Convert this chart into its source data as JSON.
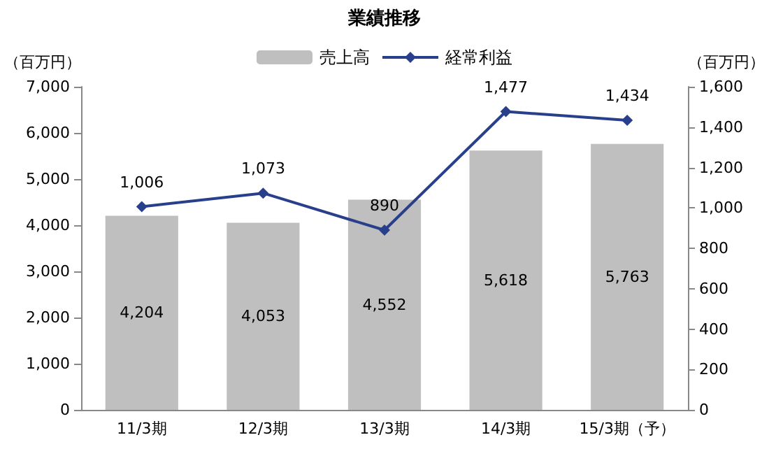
{
  "chart_data": {
    "type": "bar",
    "title": "業績推移",
    "ylabel": "（百万円）",
    "y2label": "（百万円）",
    "categories": [
      "11/3期",
      "12/3期",
      "13/3期",
      "14/3期",
      "15/3期（予）"
    ],
    "series": [
      {
        "name": "売上高",
        "color": "#bfbfbf",
        "values": [
          4204,
          4053,
          4552,
          5618,
          5763
        ],
        "value_labels": [
          "4,204",
          "4,053",
          "4,552",
          "5,618",
          "5,763"
        ]
      },
      {
        "name": "経常利益",
        "type": "line",
        "axis": "y2",
        "color": "#283f8c",
        "marker": "diamond",
        "values": [
          1006,
          1073,
          890,
          1477,
          1434
        ],
        "value_labels": [
          "1,006",
          "1,073",
          "890",
          "1,477",
          "1,434"
        ]
      }
    ],
    "ylim": [
      0,
      7000
    ],
    "yticks": [
      {
        "value": 0,
        "label": "0"
      },
      {
        "value": 1000,
        "label": "1,000"
      },
      {
        "value": 2000,
        "label": "2,000"
      },
      {
        "value": 3000,
        "label": "3,000"
      },
      {
        "value": 4000,
        "label": "4,000"
      },
      {
        "value": 5000,
        "label": "5,000"
      },
      {
        "value": 6000,
        "label": "6,000"
      },
      {
        "value": 7000,
        "label": "7,000"
      }
    ],
    "y2lim": [
      0,
      1600
    ],
    "y2ticks": [
      {
        "value": 0,
        "label": "0"
      },
      {
        "value": 200,
        "label": "200"
      },
      {
        "value": 400,
        "label": "400"
      },
      {
        "value": 600,
        "label": "600"
      },
      {
        "value": 800,
        "label": "800"
      },
      {
        "value": 1000,
        "label": "1,000"
      },
      {
        "value": 1200,
        "label": "1,200"
      },
      {
        "value": 1400,
        "label": "1,400"
      },
      {
        "value": 1600,
        "label": "1,600"
      }
    ],
    "legend": "top",
    "grid": false
  }
}
